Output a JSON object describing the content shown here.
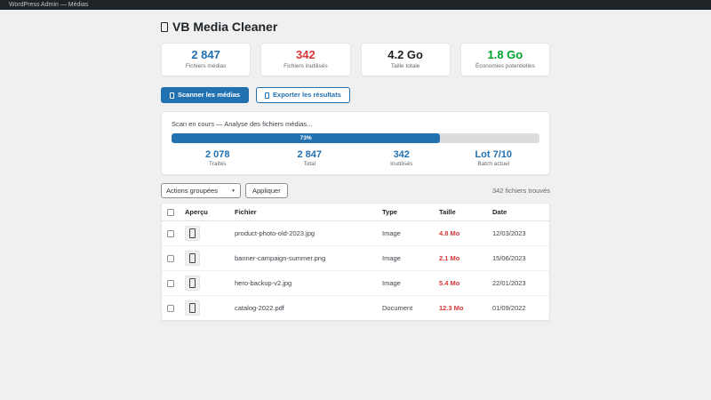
{
  "admin_bar": {
    "title": "WordPress Admin — Médias"
  },
  "page": {
    "title": "VB Media Cleaner",
    "icon": "broom-emoji-placeholder"
  },
  "colors": {
    "accent_blue": "#2271b1",
    "alert_red": "#d63638",
    "success_green": "#00a32a",
    "admin_bar_bg": "#1d2327",
    "page_bg": "#f0f0f1"
  },
  "stat_cards": [
    {
      "value": "2 847",
      "label": "Fichiers médias",
      "color": "#2271b1"
    },
    {
      "value": "342",
      "label": "Fichiers inutilisés",
      "color": "#d63638"
    },
    {
      "value": "4.2 Go",
      "label": "Taille totale",
      "color": "#1d2327"
    },
    {
      "value": "1.8 Go",
      "label": "Économies potentielles",
      "color": "#00a32a"
    }
  ],
  "actions": {
    "scan_label": "Scanner les médias",
    "export_label": "Exporter les résultats"
  },
  "scan": {
    "status": "Scan en cours — Analyse des fichiers médias...",
    "progress_percent": 73,
    "progress_label": "73%",
    "stats": [
      {
        "value": "2 078",
        "label": "Traités"
      },
      {
        "value": "2 847",
        "label": "Total"
      },
      {
        "value": "342",
        "label": "Inutilisés"
      },
      {
        "value": "Lot 7/10",
        "label": "Batch actuel"
      }
    ]
  },
  "bulk": {
    "select_value": "Actions groupées",
    "apply_label": "Appliquer",
    "found_text": "342 fichiers trouvés"
  },
  "table": {
    "headers": {
      "preview": "Aperçu",
      "file": "Fichier",
      "type": "Type",
      "size": "Taille",
      "date": "Date"
    },
    "rows": [
      {
        "file": "product-photo-old-2023.jpg",
        "type": "Image",
        "size": "4.8 Mo",
        "date": "12/03/2023"
      },
      {
        "file": "banner-campaign-summer.png",
        "type": "Image",
        "size": "2.1 Mo",
        "date": "15/06/2023"
      },
      {
        "file": "hero-backup-v2.jpg",
        "type": "Image",
        "size": "5.4 Mo",
        "date": "22/01/2023"
      },
      {
        "file": "catalog-2022.pdf",
        "type": "Document",
        "size": "12.3 Mo",
        "date": "01/09/2022"
      }
    ]
  }
}
